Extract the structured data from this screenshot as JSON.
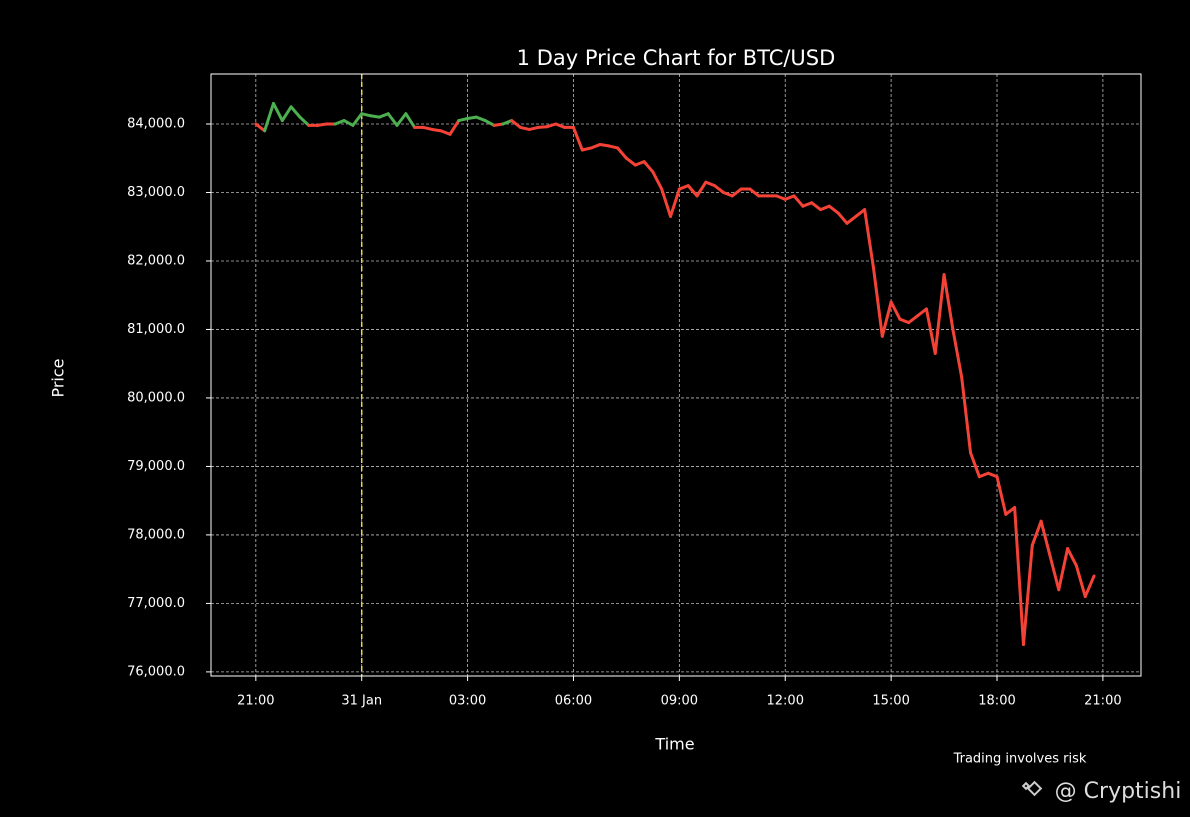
{
  "chart_data": {
    "type": "line",
    "title": "1 Day Price Chart for BTC/USD",
    "xlabel": "Time",
    "ylabel": "Price",
    "note": "Trading involves risk",
    "watermark": "@ Cryptishi",
    "x": [
      0,
      0.25,
      0.5,
      0.75,
      1,
      1.25,
      1.5,
      1.75,
      2,
      2.25,
      2.5,
      2.75,
      3,
      3.25,
      3.5,
      3.75,
      4,
      4.25,
      4.5,
      4.75,
      5,
      5.25,
      5.5,
      5.75,
      6,
      6.25,
      6.5,
      6.75,
      7,
      7.25,
      7.5,
      7.75,
      8,
      8.25,
      8.5,
      8.75,
      9,
      9.25,
      9.5,
      9.75,
      10,
      10.25,
      10.5,
      10.75,
      11,
      11.25,
      11.5,
      11.75,
      12,
      12.25,
      12.5,
      12.75,
      13,
      13.25,
      13.5,
      13.75,
      14,
      14.25,
      14.5,
      14.75,
      15,
      15.25,
      15.5,
      15.75,
      16,
      16.25,
      16.5,
      16.75,
      17,
      17.25,
      17.5,
      17.75,
      18,
      18.25,
      18.5,
      18.75,
      19,
      19.25,
      19.5,
      19.75,
      20,
      20.25,
      20.5,
      20.75,
      21,
      21.25,
      21.5,
      21.75,
      22,
      22.25,
      22.5,
      22.75,
      23,
      23.25,
      23.5,
      23.75
    ],
    "values": [
      84000,
      83900,
      84300,
      84050,
      84250,
      84100,
      83980,
      83980,
      84000,
      84000,
      84050,
      83980,
      84150,
      84120,
      84100,
      84150,
      83980,
      84150,
      83950,
      83950,
      83920,
      83900,
      83850,
      84050,
      84080,
      84100,
      84050,
      83980,
      84000,
      84050,
      83950,
      83920,
      83950,
      83960,
      84000,
      83950,
      83950,
      83620,
      83650,
      83700,
      83680,
      83650,
      83500,
      83400,
      83450,
      83300,
      83050,
      82650,
      83050,
      83100,
      82950,
      83150,
      83100,
      83000,
      82950,
      83050,
      83050,
      82950,
      82950,
      82950,
      82900,
      82950,
      82800,
      82850,
      82750,
      82800,
      82700,
      82550,
      82650,
      82750,
      81900,
      80900,
      81400,
      81150,
      81100,
      81200,
      81300,
      80650,
      81800,
      81000,
      80300,
      79200,
      78850,
      78900,
      78850,
      78300,
      78400,
      76400,
      77850,
      78200,
      77700,
      77200,
      77800,
      77550,
      77100,
      77400
    ],
    "up_color": "#4caf50",
    "down_color": "#f44336",
    "vline": {
      "x": 3,
      "color": "#e8d44d"
    },
    "xlim": [
      -1.27,
      25.08
    ],
    "ylim": [
      75940,
      84730
    ],
    "xticks": [
      {
        "value": 0,
        "label": "21:00"
      },
      {
        "value": 3,
        "label": "31 Jan"
      },
      {
        "value": 6,
        "label": "03:00"
      },
      {
        "value": 9,
        "label": "06:00"
      },
      {
        "value": 12,
        "label": "09:00"
      },
      {
        "value": 15,
        "label": "12:00"
      },
      {
        "value": 18,
        "label": "15:00"
      },
      {
        "value": 21,
        "label": "18:00"
      },
      {
        "value": 24,
        "label": "21:00"
      }
    ],
    "yticks": [
      {
        "value": 76000,
        "label": "76,000.0"
      },
      {
        "value": 77000,
        "label": "77,000.0"
      },
      {
        "value": 78000,
        "label": "78,000.0"
      },
      {
        "value": 79000,
        "label": "79,000.0"
      },
      {
        "value": 80000,
        "label": "80,000.0"
      },
      {
        "value": 81000,
        "label": "81,000.0"
      },
      {
        "value": 82000,
        "label": "82,000.0"
      },
      {
        "value": 83000,
        "label": "83,000.0"
      },
      {
        "value": 84000,
        "label": "84,000.0"
      }
    ],
    "grid": true
  }
}
